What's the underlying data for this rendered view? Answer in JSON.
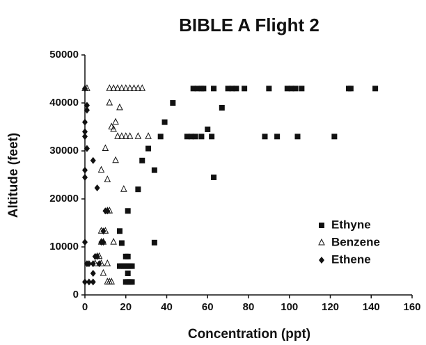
{
  "chart_data": {
    "type": "scatter",
    "title": "BIBLE A Flight 2",
    "xlabel": "Concentration (ppt)",
    "ylabel": "Altitude (feet)",
    "xlim": [
      0,
      160
    ],
    "xticks": [
      0,
      20,
      40,
      60,
      80,
      100,
      120,
      140,
      160
    ],
    "ylim": [
      0,
      50000
    ],
    "yticks": [
      0,
      10000,
      20000,
      30000,
      40000,
      50000
    ],
    "grid": false,
    "legend": "lower right",
    "series": [
      {
        "name": "Ethyne",
        "color": "#111111",
        "marker": "square",
        "x": [
          20,
          21,
          22,
          23,
          21,
          17,
          18,
          19,
          20,
          21,
          22,
          23,
          20,
          21,
          18,
          34,
          17,
          21,
          26,
          34,
          28,
          31,
          37,
          39,
          43,
          50,
          52,
          54,
          57,
          60,
          62,
          63,
          67,
          88,
          94,
          104,
          122,
          53,
          55,
          57,
          58,
          63,
          70,
          72,
          74,
          78,
          90,
          99,
          101,
          103,
          106,
          129,
          130,
          142
        ],
        "values": [
          2700,
          2700,
          2700,
          2700,
          4500,
          6000,
          6000,
          6000,
          6000,
          6000,
          6000,
          6000,
          8000,
          8000,
          10800,
          10900,
          13300,
          17500,
          22000,
          26000,
          28000,
          30500,
          33000,
          36000,
          40000,
          33000,
          33000,
          33000,
          33000,
          34500,
          33000,
          24500,
          39000,
          33000,
          33000,
          33000,
          33000,
          43000,
          43000,
          43000,
          43000,
          43000,
          43000,
          43000,
          43000,
          43000,
          43000,
          43000,
          43000,
          43000,
          43000,
          43000,
          43000,
          43000
        ]
      },
      {
        "name": "Benzene",
        "color": "#111111",
        "marker": "triangle",
        "x": [
          0,
          1,
          12,
          14,
          16,
          18,
          20,
          22,
          24,
          26,
          28,
          12,
          17,
          13,
          15,
          14,
          16,
          18,
          20,
          22,
          26,
          31,
          10,
          15,
          8,
          11,
          19,
          12,
          11,
          8,
          10,
          8,
          9,
          14,
          6,
          7,
          5,
          8,
          11,
          9,
          11,
          12,
          13
        ],
        "values": [
          43000,
          43000,
          43000,
          43000,
          43000,
          43000,
          43000,
          43000,
          43000,
          43000,
          43000,
          40000,
          39000,
          35000,
          36000,
          34500,
          33000,
          33000,
          33000,
          33000,
          33000,
          33000,
          30500,
          28000,
          26000,
          24000,
          22000,
          17500,
          17500,
          13300,
          13300,
          11000,
          11000,
          11000,
          8000,
          8000,
          6500,
          6500,
          6500,
          4500,
          2700,
          2700,
          2700
        ]
      },
      {
        "name": "Ethene",
        "color": "#111111",
        "marker": "diamond",
        "x": [
          0,
          1,
          1,
          0,
          0,
          0,
          1,
          4,
          0,
          6,
          0,
          10,
          11,
          9,
          9,
          8,
          0,
          5,
          6,
          2,
          4,
          7,
          1,
          4,
          2,
          4,
          0
        ],
        "values": [
          43000,
          39500,
          38500,
          36000,
          34000,
          33000,
          30500,
          28000,
          26000,
          22300,
          24500,
          17500,
          17500,
          13300,
          11000,
          11000,
          11000,
          8000,
          8000,
          6500,
          6500,
          6500,
          6500,
          4500,
          2700,
          2700,
          2700
        ]
      }
    ]
  }
}
